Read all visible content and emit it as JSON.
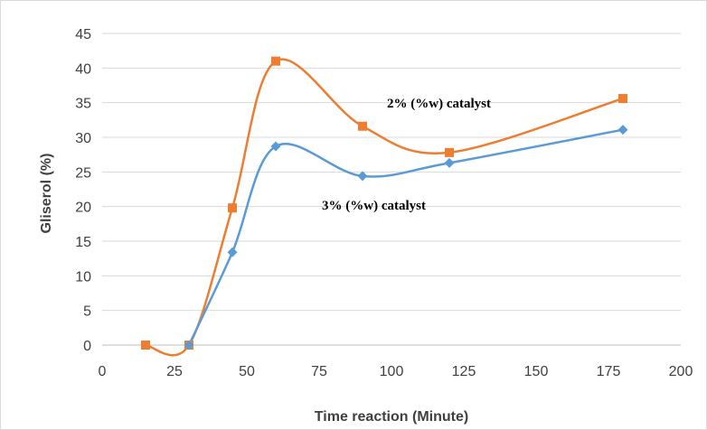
{
  "chart_data": {
    "type": "line",
    "title": "",
    "xlabel": "Time reaction (Minute)",
    "ylabel": "Gliserol (%)",
    "xlim": [
      0,
      200
    ],
    "ylim": [
      0,
      45
    ],
    "xticks": [
      0,
      25,
      50,
      75,
      100,
      125,
      150,
      175,
      200
    ],
    "yticks": [
      0,
      5,
      10,
      15,
      20,
      25,
      30,
      35,
      40,
      45
    ],
    "grid": "horizontal",
    "legend": "none",
    "smooth": true,
    "series": [
      {
        "name": "2% (%w) catalyst",
        "color": "#ED7D31",
        "marker": "square",
        "x": [
          15,
          30,
          45,
          60,
          90,
          120,
          180
        ],
        "y": [
          0,
          0,
          19.8,
          41.0,
          31.6,
          27.8,
          35.6
        ]
      },
      {
        "name": "3% (%w) catalyst",
        "color": "#5B9BD5",
        "marker": "diamond",
        "x": [
          30,
          45,
          60,
          90,
          120,
          180
        ],
        "y": [
          0,
          13.4,
          28.7,
          24.4,
          26.3,
          31.1
        ]
      }
    ]
  }
}
